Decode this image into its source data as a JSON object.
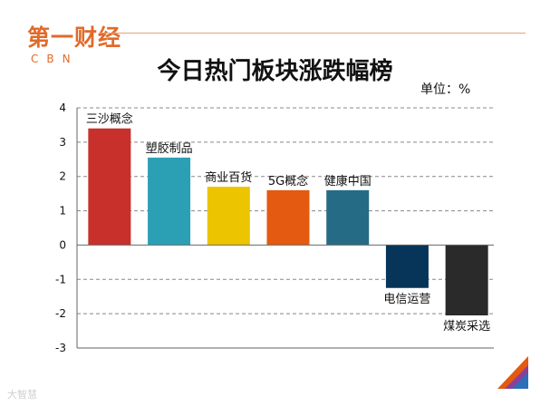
{
  "header": {
    "logo_text": "第一财经",
    "logo_sub": "CBN",
    "title": "今日热门板块涨跌幅榜",
    "unit": "单位：%"
  },
  "footer": {
    "watermark": "大智慧"
  },
  "colors": {
    "bars": [
      "#c8302b",
      "#2ba0b4",
      "#ecc400",
      "#e35a10",
      "#266b86",
      "#073559",
      "#2a2a2a"
    ],
    "grid": "#888888",
    "axis": "#666666",
    "logo": "#e06a2a"
  },
  "chart_data": {
    "type": "bar",
    "title": "今日热门板块涨跌幅榜",
    "categories": [
      "三沙概念",
      "塑胶制品",
      "商业百货",
      "5G概念",
      "健康中国",
      "电信运营",
      "煤炭采选"
    ],
    "values": [
      3.4,
      2.55,
      1.7,
      1.6,
      1.6,
      -1.25,
      -2.05
    ],
    "ylim": [
      -3,
      4
    ],
    "yticks": [
      4,
      3,
      2,
      1,
      0,
      -1,
      -2,
      -3
    ],
    "ytick_labels": [
      "4",
      "3",
      "2",
      "1",
      "0",
      "-1",
      "-2",
      "-3"
    ],
    "xlabel": "",
    "ylabel": "单位：%",
    "grid": true,
    "legend": false
  }
}
